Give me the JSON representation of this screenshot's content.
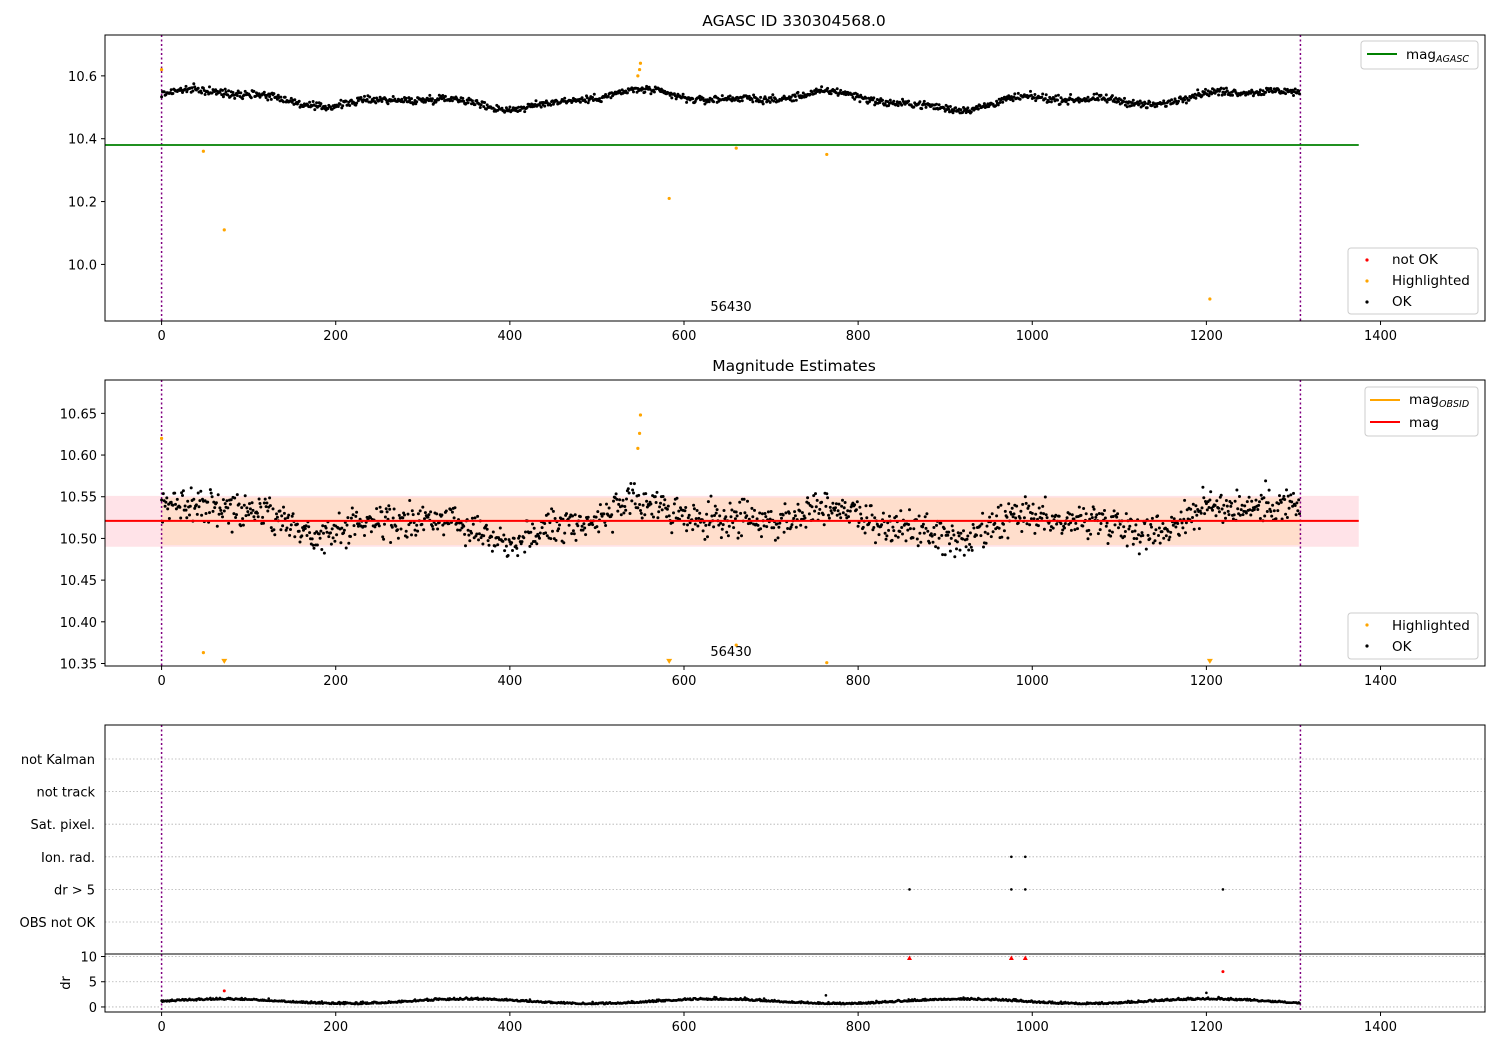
{
  "colors": {
    "ok": "#000000",
    "highlighted": "#ffa500",
    "not_ok": "#ff0000",
    "mag_agasc_line": "#008000",
    "mag_line": "#ff0000",
    "band_outer": "#ffc0cb",
    "band_inner": "#ffdab9",
    "obs_vline": "#800080",
    "grid": "#b0b0b0"
  },
  "chart_data": [
    {
      "type": "scatter",
      "title": "AGASC ID 330304568.0",
      "xlim": [
        -65,
        1520
      ],
      "ylim": [
        9.82,
        10.73
      ],
      "xticks": [
        0,
        200,
        400,
        600,
        800,
        1000,
        1200,
        1400
      ],
      "xtick_labels": [
        "0",
        "200",
        "400",
        "600",
        "800",
        "1000",
        "1200",
        "1400"
      ],
      "yticks": [
        10.0,
        10.2,
        10.4,
        10.6
      ],
      "ytick_labels": [
        "10.0",
        "10.2",
        "10.4",
        "10.6"
      ],
      "vlines": [
        0,
        1308
      ],
      "obsid_label": {
        "text": "56430",
        "x": 654
      },
      "hlines": [
        {
          "name": "mag_AGASC",
          "y": 10.38,
          "x_end": 1375
        }
      ],
      "ok_series": {
        "n": 1308,
        "center": 10.525,
        "noise": 0.026
      },
      "highlighted_points": [
        [
          0,
          10.62
        ],
        [
          48,
          10.36
        ],
        [
          72,
          10.11
        ],
        [
          547,
          10.6
        ],
        [
          549,
          10.62
        ],
        [
          550,
          10.64
        ],
        [
          583,
          10.21
        ],
        [
          660,
          10.37
        ],
        [
          764,
          10.35
        ],
        [
          1204,
          9.89
        ]
      ],
      "legends": [
        {
          "position": "upper right",
          "entries": [
            {
              "label": "mag",
              "sub": "AGASC",
              "kind": "line",
              "color_key": "mag_agasc_line"
            }
          ]
        },
        {
          "position": "lower right",
          "entries": [
            {
              "label": "not OK",
              "kind": "dot",
              "color_key": "not_ok"
            },
            {
              "label": "Highlighted",
              "kind": "dot",
              "color_key": "highlighted"
            },
            {
              "label": "OK",
              "kind": "dot",
              "color_key": "ok"
            }
          ]
        }
      ]
    },
    {
      "type": "scatter",
      "title": "Magnitude Estimates",
      "xlim": [
        -65,
        1520
      ],
      "ylim": [
        10.347,
        10.69
      ],
      "xticks": [
        0,
        200,
        400,
        600,
        800,
        1000,
        1200,
        1400
      ],
      "xtick_labels": [
        "0",
        "200",
        "400",
        "600",
        "800",
        "1000",
        "1200",
        "1400"
      ],
      "yticks": [
        10.35,
        10.4,
        10.45,
        10.5,
        10.55,
        10.6,
        10.65
      ],
      "ytick_labels": [
        "10.35",
        "10.40",
        "10.45",
        "10.50",
        "10.55",
        "10.60",
        "10.65"
      ],
      "vlines": [
        0,
        1308
      ],
      "obsid_label": {
        "text": "56430",
        "x": 654
      },
      "band_outer": [
        10.49,
        10.551
      ],
      "band_inner": [
        10.492,
        10.549
      ],
      "mag_line": 10.521,
      "mag_line_x_end": 1375,
      "ok_series": {
        "n": 1308,
        "center": 10.521,
        "noise": 0.026
      },
      "highlighted_points": [
        [
          0,
          10.62
        ],
        [
          48,
          10.363
        ],
        [
          547,
          10.608
        ],
        [
          549,
          10.626
        ],
        [
          550,
          10.648
        ],
        [
          660,
          10.372
        ],
        [
          764,
          10.351
        ]
      ],
      "highlighted_markers": [
        [
          72,
          10.352
        ],
        [
          583,
          10.352
        ],
        [
          1204,
          10.352
        ]
      ],
      "legends": [
        {
          "position": "upper right",
          "entries": [
            {
              "label": "mag",
              "sub": "OBSID",
              "kind": "line",
              "color_key": "highlighted"
            },
            {
              "label": "mag",
              "kind": "line",
              "color_key": "mag_line"
            }
          ]
        },
        {
          "position": "lower right",
          "entries": [
            {
              "label": "Highlighted",
              "kind": "dot",
              "color_key": "highlighted"
            },
            {
              "label": "OK",
              "kind": "dot",
              "color_key": "ok"
            }
          ]
        }
      ]
    },
    {
      "type": "scatter",
      "title": "",
      "xlim": [
        -65,
        1520
      ],
      "xticks": [
        0,
        200,
        400,
        600,
        800,
        1000,
        1200,
        1400
      ],
      "xtick_labels": [
        "0",
        "200",
        "400",
        "600",
        "800",
        "1000",
        "1200",
        "1400"
      ],
      "vlines": [
        0,
        1308
      ],
      "flag_rows": [
        "not Kalman",
        "not track",
        "Sat. pixel.",
        "Ion. rad.",
        "dr > 5",
        "OBS not OK"
      ],
      "flag_points": [
        {
          "row": "Ion. rad.",
          "x": [
            976,
            992
          ]
        },
        {
          "row": "dr > 5",
          "x": [
            859,
            976,
            992,
            1219
          ]
        }
      ]
    },
    {
      "type": "scatter",
      "title": "",
      "ylabel": "dr",
      "xlim": [
        -65,
        1520
      ],
      "ylim": [
        -1,
        10.5
      ],
      "xticks": [
        0,
        200,
        400,
        600,
        800,
        1000,
        1200,
        1400
      ],
      "xtick_labels": [
        "0",
        "200",
        "400",
        "600",
        "800",
        "1000",
        "1200",
        "1400"
      ],
      "yticks": [
        0,
        5,
        10
      ],
      "ytick_labels": [
        "0",
        "5",
        "10"
      ],
      "vlines": [
        0,
        1308
      ],
      "ok_series": {
        "n": 1308,
        "center": 1.0,
        "noise": 0.35
      },
      "extra_ok_points": [
        [
          763,
          2.3
        ],
        [
          1200,
          2.8
        ],
        [
          40,
          1.3
        ]
      ],
      "not_ok_points": [
        [
          72,
          3.2
        ],
        [
          1219,
          7.0
        ]
      ],
      "not_ok_markers": [
        [
          859,
          9.7
        ],
        [
          976,
          9.7
        ],
        [
          992,
          9.7
        ]
      ]
    }
  ]
}
